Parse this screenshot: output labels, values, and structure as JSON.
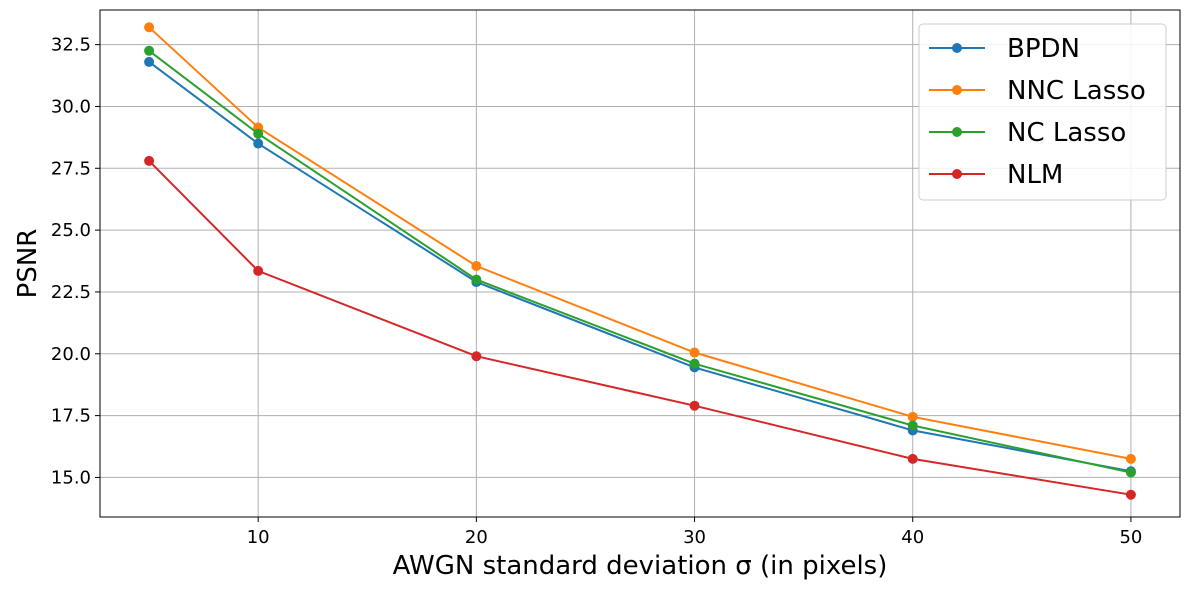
{
  "chart_data": {
    "type": "line",
    "title": "",
    "xlabel": "AWGN standard deviation σ (in pixels)",
    "ylabel": "PSNR",
    "x": [
      5,
      10,
      20,
      30,
      40,
      50
    ],
    "xlim": [
      2.75,
      52.25
    ],
    "ylim": [
      13.4,
      33.9
    ],
    "xticks": [
      10,
      20,
      30,
      40,
      50
    ],
    "yticks": [
      15.0,
      17.5,
      20.0,
      22.5,
      25.0,
      27.5,
      30.0,
      32.5
    ],
    "grid": true,
    "legend_position": "top-right",
    "series": [
      {
        "name": "BPDN",
        "color": "#1f77b4",
        "values": [
          31.8,
          28.5,
          22.9,
          19.45,
          16.9,
          15.25
        ]
      },
      {
        "name": "NNC Lasso",
        "color": "#ff7f0e",
        "values": [
          33.2,
          29.15,
          23.55,
          20.05,
          17.45,
          15.75
        ]
      },
      {
        "name": "NC Lasso",
        "color": "#2ca02c",
        "values": [
          32.25,
          28.9,
          23.0,
          19.6,
          17.1,
          15.2
        ]
      },
      {
        "name": "NLM",
        "color": "#d62728",
        "values": [
          27.8,
          23.35,
          19.9,
          17.9,
          15.75,
          14.3
        ]
      }
    ]
  }
}
